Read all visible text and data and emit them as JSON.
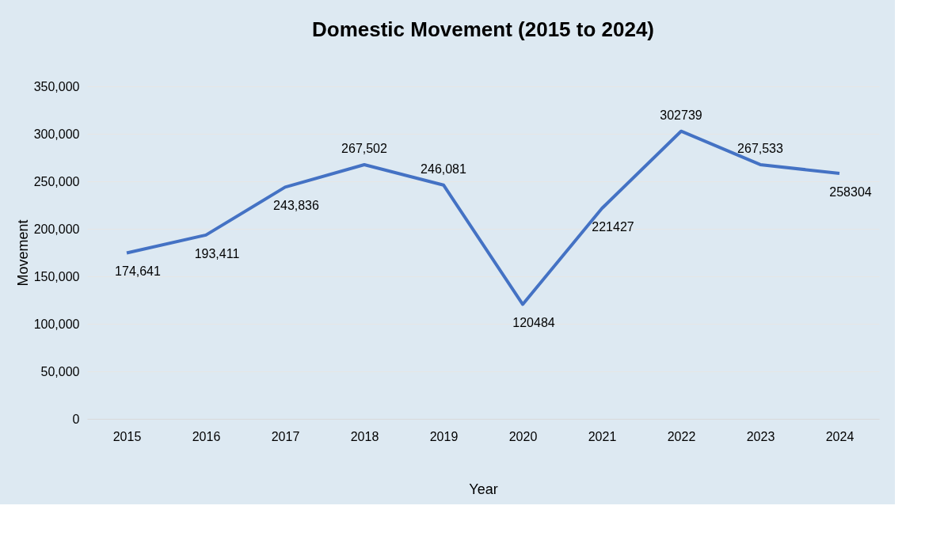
{
  "chart_data": {
    "type": "line",
    "title": "Domestic Movement (2015 to 2024)",
    "xlabel": "Year",
    "ylabel": "Movement",
    "categories": [
      "2015",
      "2016",
      "2017",
      "2018",
      "2019",
      "2020",
      "2021",
      "2022",
      "2023",
      "2024"
    ],
    "series": [
      {
        "color": "#4472c4",
        "values": [
          174641,
          193411,
          243836,
          267502,
          246081,
          120484,
          221427,
          302739,
          267533,
          258304
        ],
        "value_labels": [
          "174,641",
          "193,411",
          "243,836",
          "267,502",
          "246,081",
          "120484",
          "221427",
          "302739",
          "267,533",
          "258304"
        ]
      }
    ],
    "ylim": [
      0,
      350000
    ],
    "yticks": [
      0,
      {
        "value": 50000,
        "label": "50,000"
      },
      {
        "value": 100000,
        "label": "100,000"
      },
      {
        "value": 150000,
        "label": "150,000"
      },
      {
        "value": 200000,
        "label": "200,000"
      },
      {
        "value": 250000,
        "label": "250,000"
      },
      {
        "value": 300000,
        "label": "300,000"
      },
      {
        "value": 350000,
        "label": "350,000"
      }
    ],
    "grid": "y",
    "marker": "none",
    "line_style": "solid"
  }
}
